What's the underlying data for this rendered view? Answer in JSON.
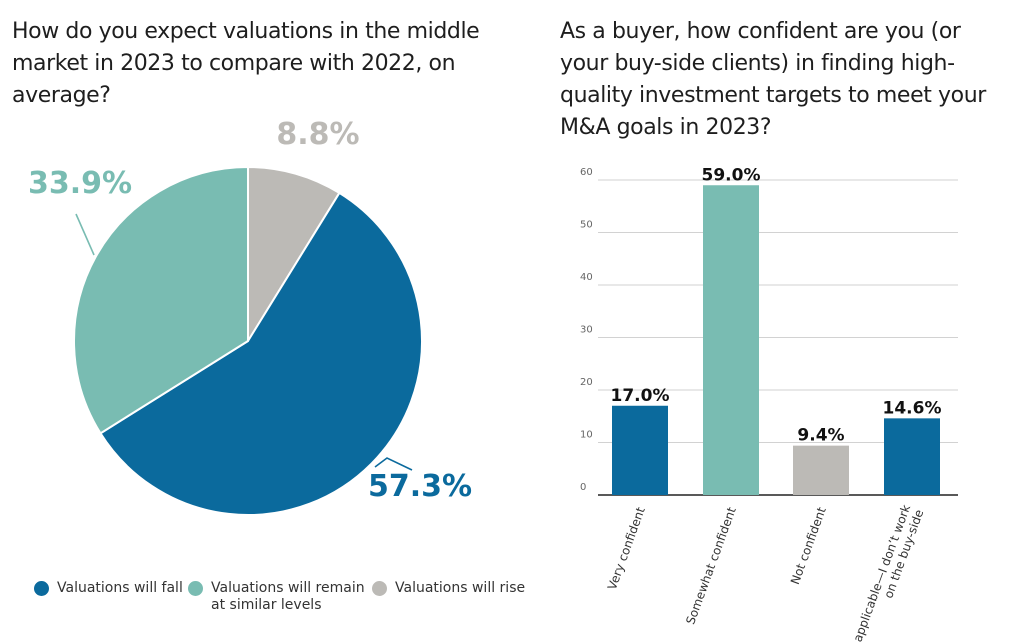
{
  "colors": {
    "dark_blue": "#0b6a9d",
    "teal": "#79bcb2",
    "gray": "#bcbab6"
  },
  "chart_data": [
    {
      "type": "pie",
      "title": "How do you expect valuations in the middle market in 2023 to compare with 2022, on average?",
      "slices": [
        {
          "label": "Valuations will rise",
          "value": 8.8,
          "value_label": "8.8%",
          "color": "#bcbab6"
        },
        {
          "label": "Valuations will fall",
          "value": 57.3,
          "value_label": "57.3%",
          "color": "#0b6a9d"
        },
        {
          "label": "Valuations will remain at similar levels",
          "value": 33.9,
          "value_label": "33.9%",
          "color": "#79bcb2"
        }
      ],
      "legend": [
        {
          "label": "Valuations will fall",
          "color": "#0b6a9d"
        },
        {
          "label": "Valuations will remain at similar levels",
          "color": "#79bcb2"
        },
        {
          "label": "Valuations will rise",
          "color": "#bcbab6"
        }
      ],
      "legend_position": "bottom"
    },
    {
      "type": "bar",
      "title": "As a buyer, how confident are you (or your buy-side clients) in finding high-quality investment targets to meet your M&A goals in 2023?",
      "categories": [
        "Very confident",
        "Somewhat confident",
        "Not confident",
        "Not applicable—I don’t work on the buy-side"
      ],
      "values": [
        17.0,
        59.0,
        9.4,
        14.6
      ],
      "value_labels": [
        "17.0%",
        "59.0%",
        "9.4%",
        "14.6%"
      ],
      "colors": [
        "#0b6a9d",
        "#79bcb2",
        "#bcbab6",
        "#0b6a9d"
      ],
      "yticks": [
        0,
        10,
        20,
        30,
        40,
        50,
        60
      ],
      "ylim": [
        0,
        60
      ],
      "grid": true,
      "xlabel": "",
      "ylabel": ""
    }
  ]
}
